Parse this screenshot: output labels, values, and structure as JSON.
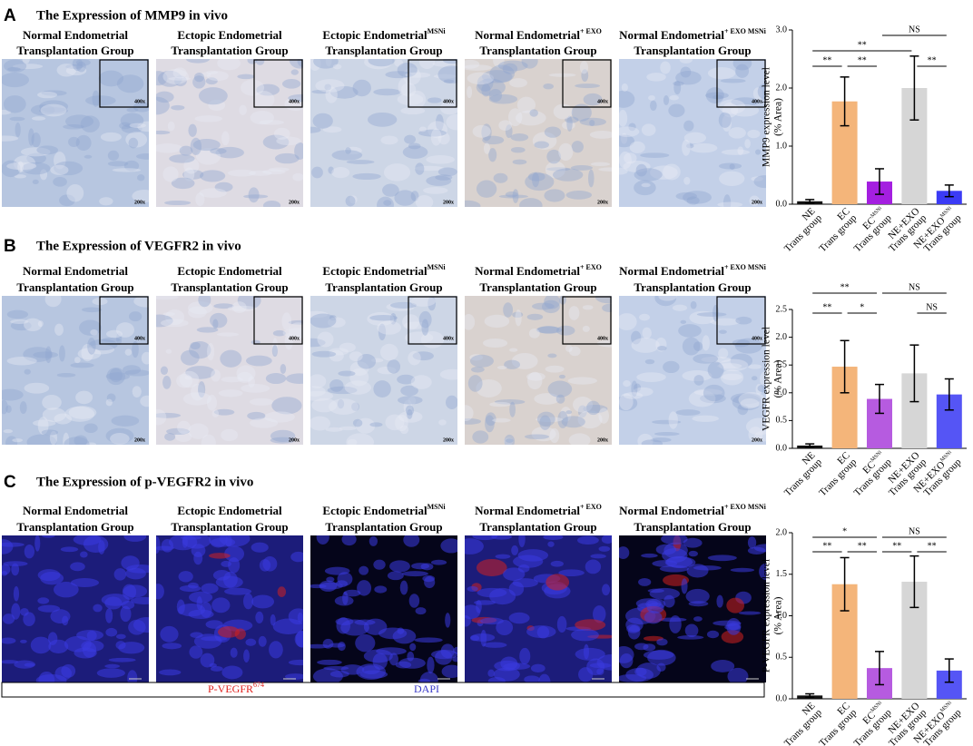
{
  "panels": [
    {
      "letter": "A",
      "title": "The Expression of MMP9 in vivo",
      "columns": [
        {
          "line1": "Normal Endometrial",
          "line2": "Transplantation Group"
        },
        {
          "line1": "Ectopic Endometrial",
          "line2": "Transplantation Group"
        },
        {
          "line1": "Ectopic Endometrial",
          "sup": "MSNi",
          "line2": "Transplantation Group"
        },
        {
          "line1": "Normal Endometrial",
          "sup": "+ EXO",
          "line2": "Transplantation Group"
        },
        {
          "line1": "Normal Endometrial",
          "sup": "+ EXO MSNi",
          "line2": "Transplantation Group"
        }
      ],
      "inset_label": "400x",
      "main_label": "200x"
    },
    {
      "letter": "B",
      "title": "The Expression of VEGFR2 in vivo",
      "columns": [
        {
          "line1": "Normal Endometrial",
          "line2": "Transplantation Group"
        },
        {
          "line1": "Ectopic Endometrial",
          "line2": "Transplantation Group"
        },
        {
          "line1": "Ectopic Endometrial",
          "sup": "MSNi",
          "line2": "Transplantation Group"
        },
        {
          "line1": "Normal Endometrial",
          "sup": "+ EXO",
          "line2": "Transplantation Group"
        },
        {
          "line1": "Normal Endometrial",
          "sup": "+ EXO MSNi",
          "line2": "Transplantation Group"
        }
      ],
      "inset_label": "400x",
      "main_label": "200x"
    },
    {
      "letter": "C",
      "title": "The Expression of p-VEGFR2 in vivo",
      "columns": [
        {
          "line1": "Normal Endometrial",
          "line2": "Transplantation Group"
        },
        {
          "line1": "Ectopic Endometrial",
          "line2": "Transplantation Group"
        },
        {
          "line1": "Ectopic Endometrial",
          "sup": "MSNi",
          "line2": "Transplantation Group"
        },
        {
          "line1": "Normal Endometrial",
          "sup": "+ EXO",
          "line2": "Transplantation Group"
        },
        {
          "line1": "Normal Endometrial",
          "sup": "+ EXO MSNi",
          "line2": "Transplantation Group"
        }
      ],
      "stains": [
        {
          "text": "P-VEGFR",
          "sup": "674",
          "color": "#e0201c"
        },
        {
          "text": "DAPI",
          "color": "#3a3ac8"
        }
      ]
    }
  ],
  "chart_data": [
    {
      "type": "bar",
      "ylabel": [
        "MMP9 expression level",
        "(% Area)"
      ],
      "categories": [
        {
          "label": "NE",
          "line2": "Trans group"
        },
        {
          "label": "EC",
          "line2": "Trans group"
        },
        {
          "label": "EC",
          "sup": "MSNi",
          "line2": "Trans group"
        },
        {
          "label": "NE+EXO",
          "line2": "Trans group"
        },
        {
          "label": "NE+EXO",
          "sup": "MSNi",
          "line2": "Trans group"
        }
      ],
      "values": [
        0.05,
        1.77,
        0.39,
        2.0,
        0.23
      ],
      "errors": [
        0.03,
        0.42,
        0.22,
        0.55,
        0.1
      ],
      "colors": [
        "#111111",
        "#f4b57a",
        "#a41fe0",
        "#d6d6d6",
        "#3b3bf5"
      ],
      "ylim": [
        0,
        3
      ],
      "yticks": [
        {
          "value": 0,
          "label": "0.0"
        },
        {
          "value": 1,
          "label": "1.0"
        },
        {
          "value": 2,
          "label": "2.0"
        },
        {
          "value": 3,
          "label": "3.0"
        }
      ],
      "annotations": [
        {
          "pair": [
            0,
            1
          ],
          "text": "**"
        },
        {
          "pair": [
            1,
            2
          ],
          "text": "**"
        },
        {
          "pair": [
            3,
            4
          ],
          "text": "**"
        },
        {
          "pair": [
            0,
            3
          ],
          "text": "**"
        },
        {
          "pair": [
            2,
            4
          ],
          "text": "NS"
        }
      ]
    },
    {
      "type": "bar",
      "ylabel": [
        "VEGFR expression level",
        "(% Area)"
      ],
      "categories": [
        {
          "label": "NE",
          "line2": "Trans group"
        },
        {
          "label": "EC",
          "line2": "Trans group"
        },
        {
          "label": "EC",
          "sup": "MSNi",
          "line2": "Trans group"
        },
        {
          "label": "NE+EXO",
          "line2": "Trans group"
        },
        {
          "label": "NE+EXO",
          "sup": "MSNi",
          "line2": "Trans group"
        }
      ],
      "values": [
        0.05,
        1.47,
        0.89,
        1.35,
        0.97
      ],
      "errors": [
        0.03,
        0.47,
        0.26,
        0.51,
        0.28
      ],
      "colors": [
        "#111111",
        "#f4b57a",
        "#b65be0",
        "#d6d6d6",
        "#5555f5"
      ],
      "ylim": [
        0,
        2.5
      ],
      "yticks": [
        {
          "value": 0,
          "label": "0.0"
        },
        {
          "value": 0.5,
          "label": "0.5"
        },
        {
          "value": 1,
          "label": "1.0"
        },
        {
          "value": 1.5,
          "label": "1.5"
        },
        {
          "value": 2,
          "label": "2.0"
        },
        {
          "value": 2.5,
          "label": "2.5"
        }
      ],
      "annotations": [
        {
          "pair": [
            0,
            1
          ],
          "text": "**"
        },
        {
          "pair": [
            1,
            2
          ],
          "text": "*"
        },
        {
          "pair": [
            3,
            4
          ],
          "text": "NS"
        },
        {
          "pair": [
            0,
            2
          ],
          "text": "**"
        },
        {
          "pair": [
            2,
            4
          ],
          "text": "NS"
        }
      ]
    },
    {
      "type": "bar",
      "ylabel": [
        "P-VEGFR expression level",
        "(% Area)"
      ],
      "categories": [
        {
          "label": "NE",
          "line2": "Trans group"
        },
        {
          "label": "EC",
          "line2": "Trans group"
        },
        {
          "label": "EC",
          "sup": "MSNi",
          "line2": "Trans group"
        },
        {
          "label": "NE+EXO",
          "line2": "Trans group"
        },
        {
          "label": "NE+EXO",
          "sup": "MSNi",
          "line2": "Trans group"
        }
      ],
      "values": [
        0.04,
        1.38,
        0.37,
        1.41,
        0.34
      ],
      "errors": [
        0.02,
        0.32,
        0.2,
        0.31,
        0.14
      ],
      "colors": [
        "#111111",
        "#f4b57a",
        "#b65be0",
        "#d6d6d6",
        "#5555f5"
      ],
      "ylim": [
        0,
        2
      ],
      "yticks": [
        {
          "value": 0,
          "label": "0.0"
        },
        {
          "value": 0.5,
          "label": "0.5"
        },
        {
          "value": 1,
          "label": "1.0"
        },
        {
          "value": 1.5,
          "label": "1.5"
        },
        {
          "value": 2,
          "label": "2.0"
        }
      ],
      "annotations": [
        {
          "pair": [
            0,
            1
          ],
          "text": "**"
        },
        {
          "pair": [
            1,
            2
          ],
          "text": "**"
        },
        {
          "pair": [
            2,
            3
          ],
          "text": "**"
        },
        {
          "pair": [
            3,
            4
          ],
          "text": "**"
        },
        {
          "pair": [
            0,
            2
          ],
          "text": "*"
        },
        {
          "pair": [
            2,
            4
          ],
          "text": "NS"
        }
      ]
    }
  ]
}
